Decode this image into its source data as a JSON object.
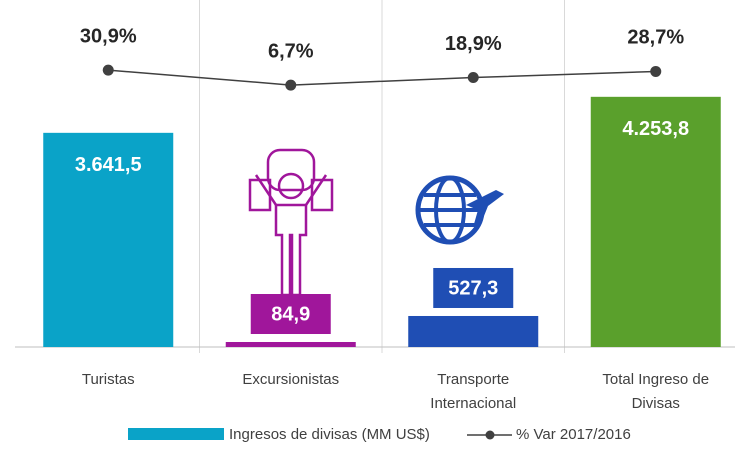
{
  "chart_data": {
    "type": "bar-line",
    "categories": [
      "Turistas",
      "Excursionistas",
      "Transporte Internacional",
      "Total Ingreso de Divisas"
    ],
    "series": [
      {
        "name": "Ingresos de divisas (MM US$)",
        "type": "bar",
        "color": "#0aa3c8",
        "colors": [
          "#0aa3c8",
          "#a0169b",
          "#1f4eb4",
          "#5aa02c"
        ],
        "values": [
          3641.5,
          84.9,
          527.3,
          4253.8
        ],
        "value_labels": [
          "3.641,5",
          "84,9",
          "527,3",
          "4.253,8"
        ]
      },
      {
        "name": "% Var 2017/2016",
        "type": "line",
        "color": "#404040",
        "axis": "y2",
        "values": [
          30.9,
          6.7,
          18.9,
          28.7
        ],
        "value_labels": [
          "30,9%",
          "6,7%",
          "18,9%",
          "28,7%"
        ]
      }
    ],
    "ylim": [
      0,
      5900
    ],
    "y2lim": [
      -416,
      144
    ]
  }
}
